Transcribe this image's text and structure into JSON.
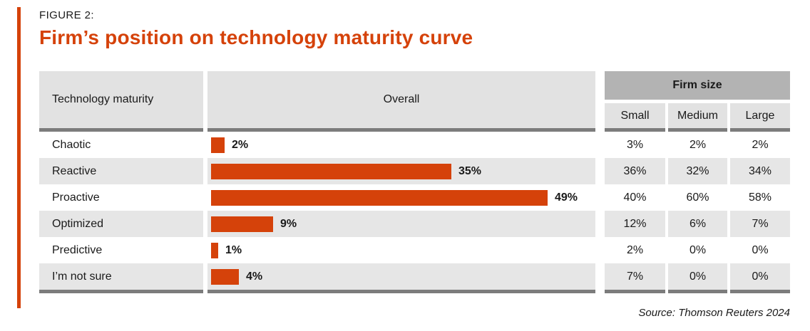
{
  "header": {
    "figure_label": "FIGURE 2:",
    "title": "Firm’s position on technology maturity curve"
  },
  "table": {
    "headers": {
      "maturity": "Technology maturity",
      "overall": "Overall",
      "firm_size": "Firm size",
      "small": "Small",
      "medium": "Medium",
      "large": "Large"
    },
    "rows": [
      {
        "label": "Chaotic",
        "overall_value": 2,
        "overall_label": "2%",
        "small": "3%",
        "medium": "2%",
        "large": "2%"
      },
      {
        "label": "Reactive",
        "overall_value": 35,
        "overall_label": "35%",
        "small": "36%",
        "medium": "32%",
        "large": "34%"
      },
      {
        "label": "Proactive",
        "overall_value": 49,
        "overall_label": "49%",
        "small": "40%",
        "medium": "60%",
        "large": "58%"
      },
      {
        "label": "Optimized",
        "overall_value": 9,
        "overall_label": "9%",
        "small": "12%",
        "medium": "6%",
        "large": "7%"
      },
      {
        "label": "Predictive",
        "overall_value": 1,
        "overall_label": "1%",
        "small": "2%",
        "medium": "0%",
        "large": "0%"
      },
      {
        "label": "I’m not sure",
        "overall_value": 4,
        "overall_label": "4%",
        "small": "7%",
        "medium": "0%",
        "large": "0%"
      }
    ]
  },
  "footer": {
    "source": "Source: Thomson Reuters 2024"
  },
  "colors": {
    "accent": "#d5420a",
    "header_gray": "#e2e2e2",
    "firm_size_gray": "#b3b3b3",
    "stripe_gray": "#e6e6e6",
    "border_gray": "#7c7c7c",
    "text": "#1a1a1a"
  },
  "chart_data": {
    "type": "bar",
    "orientation": "horizontal",
    "title": "Firm’s position on technology maturity curve",
    "categories": [
      "Chaotic",
      "Reactive",
      "Proactive",
      "Optimized",
      "Predictive",
      "I’m not sure"
    ],
    "series": [
      {
        "name": "Overall",
        "values": [
          2,
          35,
          49,
          9,
          1,
          4
        ]
      },
      {
        "name": "Small",
        "values": [
          3,
          36,
          40,
          12,
          2,
          7
        ]
      },
      {
        "name": "Medium",
        "values": [
          2,
          32,
          60,
          6,
          0,
          0
        ]
      },
      {
        "name": "Large",
        "values": [
          2,
          34,
          58,
          7,
          0,
          0
        ]
      }
    ],
    "unit": "%",
    "xlim": [
      0,
      49
    ],
    "grid": false,
    "legend_position": "table-columns",
    "source": "Source: Thomson Reuters 2024"
  }
}
